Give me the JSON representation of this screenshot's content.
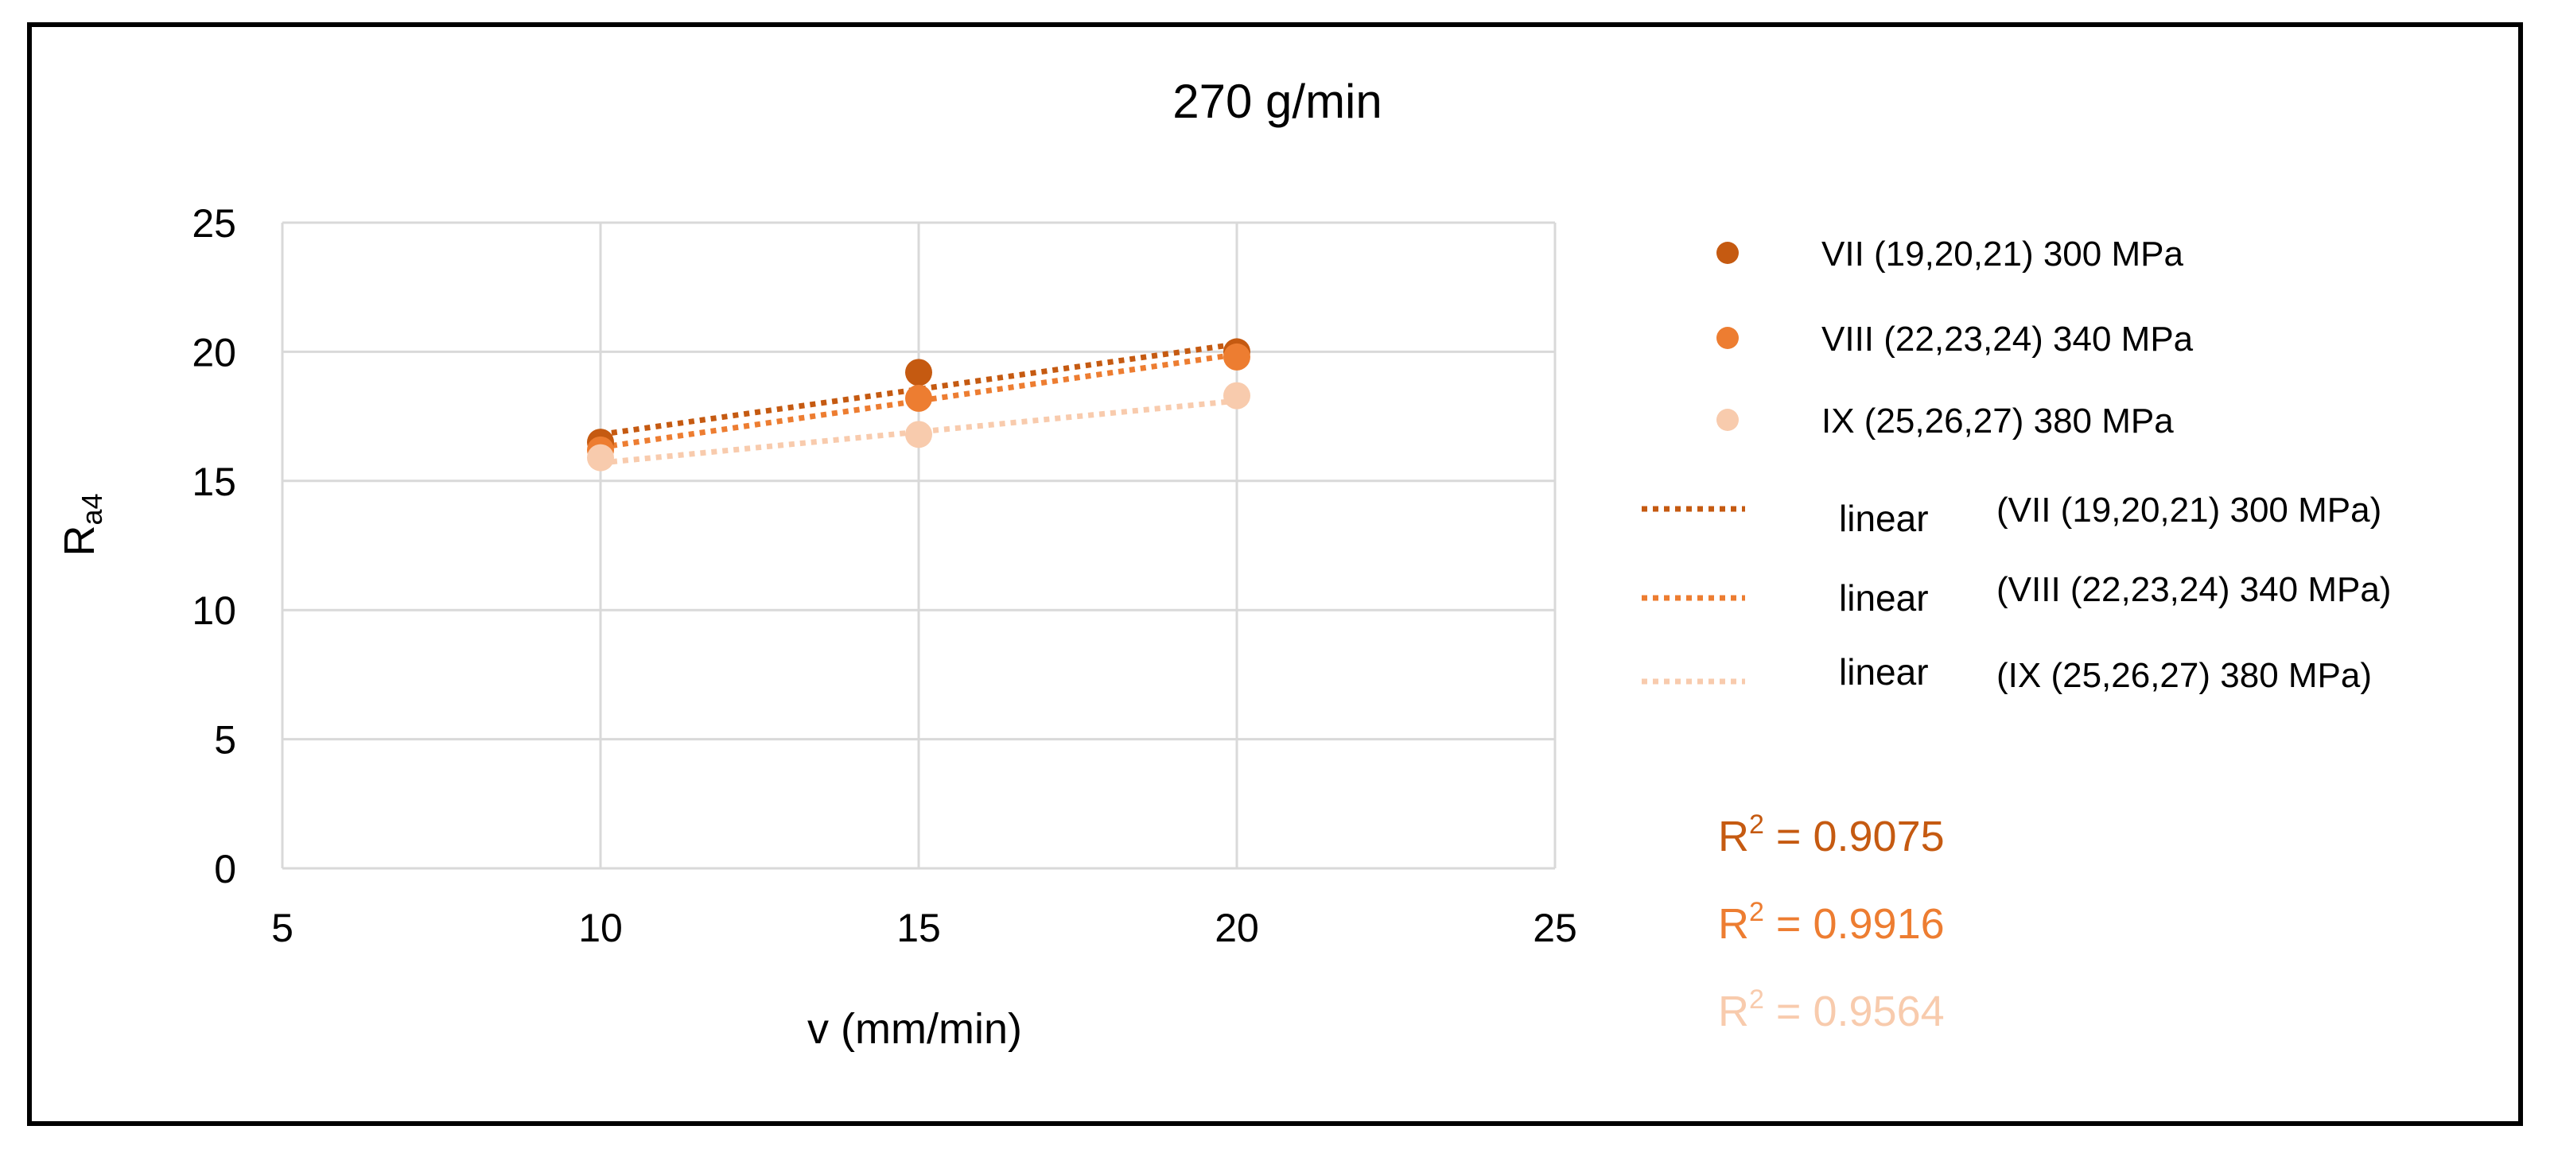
{
  "chart_data": {
    "type": "scatter",
    "title": "270 g/min",
    "xlabel": "v (mm/min)",
    "ylabel_main": "R",
    "ylabel_sub": "a4",
    "xlim": [
      5,
      25
    ],
    "ylim": [
      0,
      25
    ],
    "xticks": [
      5,
      10,
      15,
      20,
      25
    ],
    "yticks": [
      0,
      5,
      10,
      15,
      20,
      25
    ],
    "grid": true,
    "legend_position": "right",
    "series": [
      {
        "name": "VII (19,20,21) 300 MPa",
        "color": "#C55A11",
        "x": [
          10,
          15,
          20
        ],
        "y": [
          16.5,
          19.2,
          20.0
        ],
        "trend_label_word": "linear",
        "trend_label_series": "(VII (19,20,21) 300 MPa)",
        "trend_start": 16.8,
        "trend_end": 20.3,
        "r2_label": "R",
        "r2_sup": "2",
        "r2_value": " = 0.9075"
      },
      {
        "name": "VIII (22,23,24) 340 MPa",
        "color": "#ED7D31",
        "x": [
          10,
          15,
          20
        ],
        "y": [
          16.2,
          18.2,
          19.8
        ],
        "trend_label_word": "linear",
        "trend_label_series": "(VIII (22,23,24) 340 MPa)",
        "trend_start": 16.3,
        "trend_end": 19.9,
        "r2_label": "R",
        "r2_sup": "2",
        "r2_value": " = 0.9916"
      },
      {
        "name": "IX (25,26,27) 380 MPa",
        "color": "#F4B183",
        "x": [
          10,
          15,
          20
        ],
        "y": [
          15.9,
          16.8,
          18.3
        ],
        "trend_label_word": "linear",
        "trend_label_series": "(IX (25,26,27) 380 MPa)",
        "trend_start": 15.7,
        "trend_end": 18.1,
        "r2_label": "R",
        "r2_sup": "2",
        "r2_value": " = 0.9564"
      }
    ],
    "colors": {
      "grid": "#D9D9D9",
      "axis_text": "#404040",
      "r2_1": "#C55A11",
      "r2_2": "#ED7D31",
      "r2_3": "#F8CBAD"
    }
  }
}
